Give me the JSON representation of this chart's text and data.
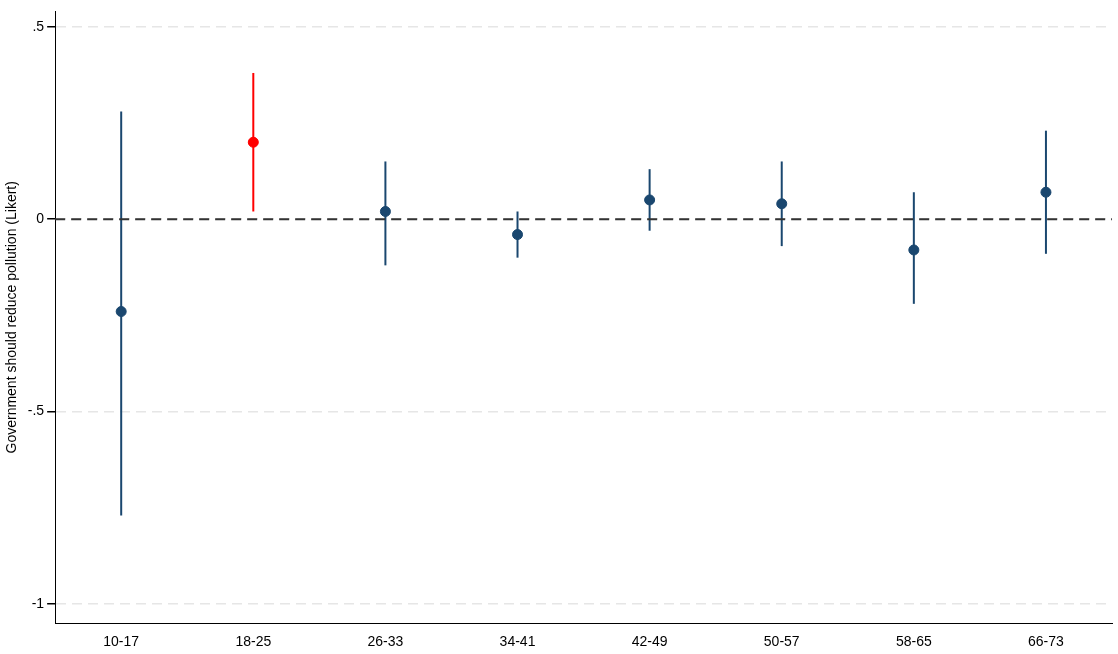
{
  "chart_data": {
    "type": "scatter",
    "ylabel": "Government should reduce pollution (Likert)",
    "categories": [
      "10-17",
      "18-25",
      "26-33",
      "34-41",
      "42-49",
      "50-57",
      "58-65",
      "66-73"
    ],
    "values": [
      -0.24,
      0.2,
      0.02,
      -0.04,
      0.05,
      0.04,
      -0.08,
      0.07
    ],
    "colors": [
      "#1a476f",
      "#ff0000",
      "#1a476f",
      "#1a476f",
      "#1a476f",
      "#1a476f",
      "#1a476f",
      "#1a476f"
    ],
    "errors": [
      [
        -0.77,
        0.28
      ],
      [
        0.02,
        0.38
      ],
      [
        -0.12,
        0.15
      ],
      [
        -0.1,
        0.02
      ],
      [
        -0.03,
        0.13
      ],
      [
        -0.07,
        0.15
      ],
      [
        -0.22,
        0.07
      ],
      [
        -0.09,
        0.23
      ]
    ],
    "ylim": [
      -1.05,
      0.54
    ],
    "yticks": [
      {
        "value": -1,
        "label": "-1"
      },
      {
        "value": -0.5,
        "label": "-.5"
      },
      {
        "value": 0,
        "label": "0"
      },
      {
        "value": 0.5,
        "label": ".5"
      }
    ],
    "ref_lines": [
      {
        "axis": "y",
        "value": 0,
        "color": "#333333",
        "line_style": "dashed"
      }
    ],
    "grid": "y",
    "legend": false,
    "marker": "circle"
  }
}
